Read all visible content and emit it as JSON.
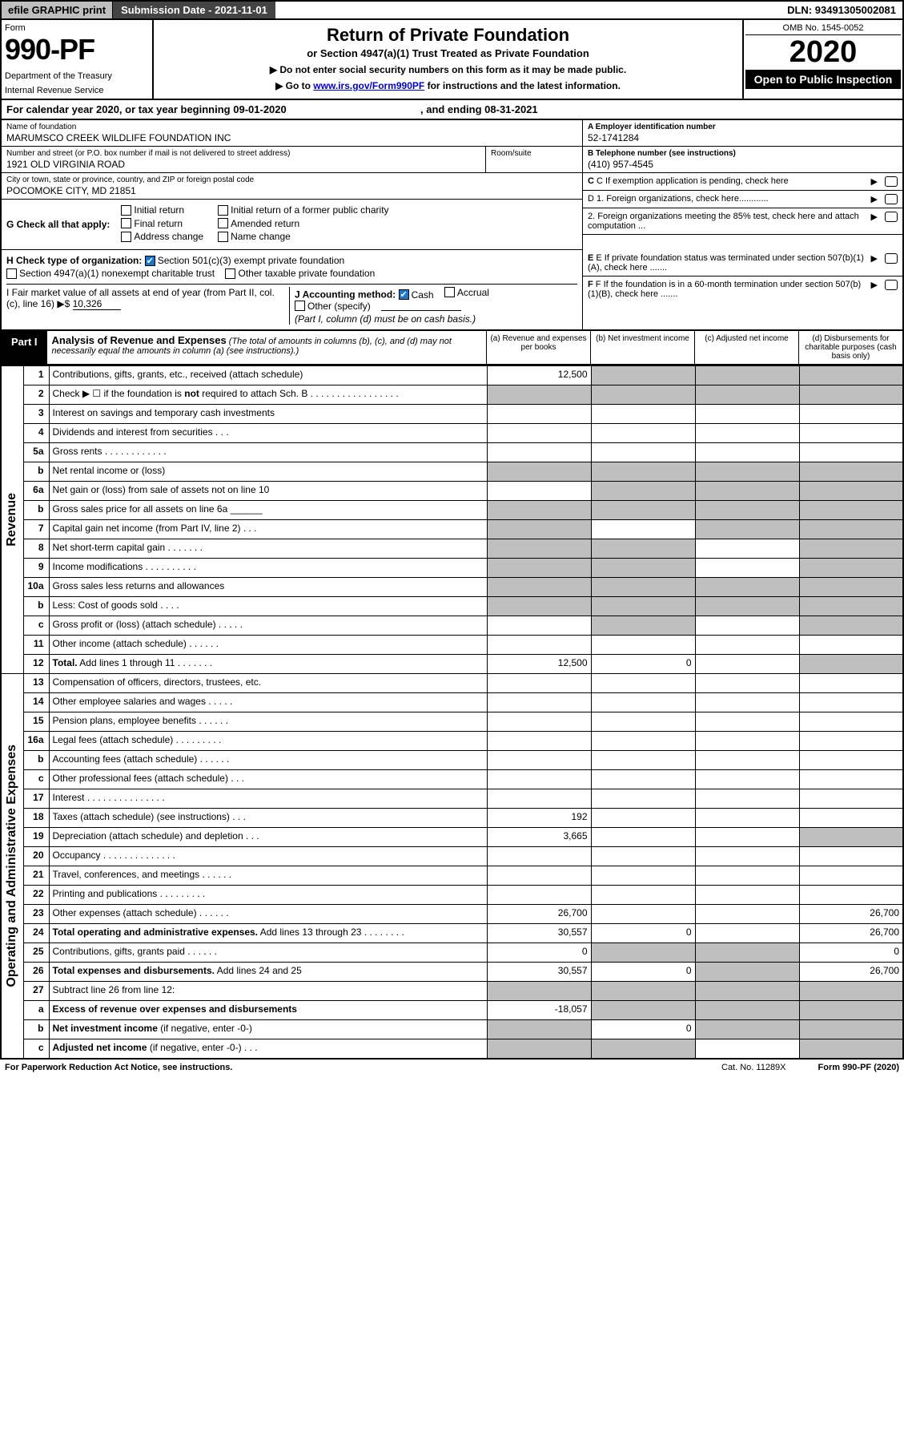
{
  "top": {
    "efile": "efile GRAPHIC print",
    "subdate_lbl": "Submission Date - ",
    "subdate": "2021-11-01",
    "dln_lbl": "DLN: ",
    "dln": "93491305002081"
  },
  "hdr": {
    "form_lbl": "Form",
    "form_num": "990-PF",
    "dept1": "Department of the Treasury",
    "dept2": "Internal Revenue Service",
    "title": "Return of Private Foundation",
    "sub1": "or Section 4947(a)(1) Trust Treated as Private Foundation",
    "sub2a": "▶ Do not enter social security numbers on this form as it may be made public.",
    "sub2b": "▶ Go to ",
    "sub2link": "www.irs.gov/Form990PF",
    "sub2c": " for instructions and the latest information.",
    "omb": "OMB No. 1545-0052",
    "year": "2020",
    "open": "Open to Public Inspection"
  },
  "cal": {
    "text1": "For calendar year 2020, or tax year beginning ",
    "begin": "09-01-2020",
    "text2": " , and ending ",
    "end": "08-31-2021"
  },
  "name": {
    "lbl": "Name of foundation",
    "val": "MARUMSCO CREEK WILDLIFE FOUNDATION INC"
  },
  "ein": {
    "lbl": "A Employer identification number",
    "val": "52-1741284"
  },
  "street": {
    "lbl": "Number and street (or P.O. box number if mail is not delivered to street address)",
    "val": "1921 OLD VIRGINIA ROAD"
  },
  "room": {
    "lbl": "Room/suite",
    "val": ""
  },
  "phone": {
    "lbl": "B Telephone number (see instructions)",
    "val": "(410) 957-4545"
  },
  "city": {
    "lbl": "City or town, state or province, country, and ZIP or foreign postal code",
    "val": "POCOMOKE CITY, MD  21851"
  },
  "c_exempt": "C If exemption application is pending, check here",
  "g": {
    "prefix": "G Check all that apply:",
    "opts": [
      "Initial return",
      "Final return",
      "Address change",
      "Initial return of a former public charity",
      "Amended return",
      "Name change"
    ]
  },
  "d": {
    "d1": "D 1. Foreign organizations, check here............",
    "d2": "2. Foreign organizations meeting the 85% test, check here and attach computation ..."
  },
  "h": {
    "prefix": "H Check type of organization:",
    "opt1": "Section 501(c)(3) exempt private foundation",
    "opt2": "Section 4947(a)(1) nonexempt charitable trust",
    "opt3": "Other taxable private foundation"
  },
  "e_txt": "E If private foundation status was terminated under section 507(b)(1)(A), check here .......",
  "i": {
    "lbl": "I Fair market value of all assets at end of year (from Part II, col. (c), line 16) ▶$ ",
    "val": "10,326"
  },
  "j": {
    "lbl": "J Accounting method:",
    "cash": "Cash",
    "accrual": "Accrual",
    "other": "Other (specify)",
    "note": "(Part I, column (d) must be on cash basis.)"
  },
  "f_txt": "F If the foundation is in a 60-month termination under section 507(b)(1)(B), check here .......",
  "part1": {
    "lbl": "Part I",
    "ttl": "Analysis of Revenue and Expenses",
    "ital": " (The total of amounts in columns (b), (c), and (d) may not necessarily equal the amounts in column (a) (see instructions).)",
    "ca": "(a) Revenue and expenses per books",
    "cb": "(b) Net investment income",
    "cc": "(c) Adjusted net income",
    "cd": "(d) Disbursements for charitable purposes (cash basis only)"
  },
  "side": {
    "rev": "Revenue",
    "exp": "Operating and Administrative Expenses"
  },
  "rows": [
    {
      "n": "1",
      "d": "Contributions, gifts, grants, etc., received (attach schedule)",
      "a": "12,500",
      "grey": [
        "b",
        "c",
        "d"
      ]
    },
    {
      "n": "2",
      "d": "Check ▶ ☐ if the foundation is <b>not</b> required to attach Sch. B  . . . . . . . . . . . . . . . . .",
      "grey": [
        "a",
        "b",
        "c",
        "d"
      ]
    },
    {
      "n": "3",
      "d": "Interest on savings and temporary cash investments"
    },
    {
      "n": "4",
      "d": "Dividends and interest from securities    .  .  ."
    },
    {
      "n": "5a",
      "d": "Gross rents    .  .  .  .  .  .  .  .  .  .  .  ."
    },
    {
      "n": "b",
      "d": "Net rental income or (loss)",
      "grey": [
        "a",
        "b",
        "c",
        "d"
      ]
    },
    {
      "n": "6a",
      "d": "Net gain or (loss) from sale of assets not on line 10",
      "grey": [
        "b",
        "c",
        "d"
      ]
    },
    {
      "n": "b",
      "d": "Gross sales price for all assets on line 6a ______",
      "grey": [
        "a",
        "b",
        "c",
        "d"
      ]
    },
    {
      "n": "7",
      "d": "Capital gain net income (from Part IV, line 2)   .  .  .",
      "grey": [
        "a",
        "c",
        "d"
      ]
    },
    {
      "n": "8",
      "d": "Net short-term capital gain  .  .  .  .  .  .  .",
      "grey": [
        "a",
        "b",
        "d"
      ]
    },
    {
      "n": "9",
      "d": "Income modifications  .  .  .  .  .  .  .  .  .  .",
      "grey": [
        "a",
        "b",
        "d"
      ]
    },
    {
      "n": "10a",
      "d": "Gross sales less returns and allowances",
      "grey": [
        "a",
        "b",
        "c",
        "d"
      ]
    },
    {
      "n": "b",
      "d": "Less: Cost of goods sold   .  .  .  .",
      "grey": [
        "a",
        "b",
        "c",
        "d"
      ]
    },
    {
      "n": "c",
      "d": "Gross profit or (loss) (attach schedule)   .  .  .  .  .",
      "grey": [
        "b",
        "d"
      ]
    },
    {
      "n": "11",
      "d": "Other income (attach schedule)   .  .  .  .  .  ."
    },
    {
      "n": "12",
      "d": "<b>Total.</b> Add lines 1 through 11   .  .  .  .  .  .  .",
      "a": "12,500",
      "b": "0",
      "grey": [
        "d"
      ]
    },
    {
      "n": "13",
      "d": "Compensation of officers, directors, trustees, etc."
    },
    {
      "n": "14",
      "d": "Other employee salaries and wages   .  .  .  .  ."
    },
    {
      "n": "15",
      "d": "Pension plans, employee benefits  .  .  .  .  .  ."
    },
    {
      "n": "16a",
      "d": "Legal fees (attach schedule) .  .  .  .  .  .  .  .  ."
    },
    {
      "n": "b",
      "d": "Accounting fees (attach schedule)  .  .  .  .  .  ."
    },
    {
      "n": "c",
      "d": "Other professional fees (attach schedule)    .  .  ."
    },
    {
      "n": "17",
      "d": "Interest  .  .  .  .  .  .  .  .  .  .  .  .  .  .  ."
    },
    {
      "n": "18",
      "d": "Taxes (attach schedule) (see instructions)    .  .  .",
      "a": "192"
    },
    {
      "n": "19",
      "d": "Depreciation (attach schedule) and depletion   .  .  .",
      "a": "3,665",
      "grey": [
        "d"
      ]
    },
    {
      "n": "20",
      "d": "Occupancy .  .  .  .  .  .  .  .  .  .  .  .  .  ."
    },
    {
      "n": "21",
      "d": "Travel, conferences, and meetings  .  .  .  .  .  ."
    },
    {
      "n": "22",
      "d": "Printing and publications  .  .  .  .  .  .  .  .  ."
    },
    {
      "n": "23",
      "d": "Other expenses (attach schedule)  .  .  .  .  .  .",
      "a": "26,700",
      "dd": "26,700"
    },
    {
      "n": "24",
      "d": "<b>Total operating and administrative expenses.</b> Add lines 13 through 23   .  .  .  .  .  .  .  .",
      "a": "30,557",
      "b": "0",
      "dd": "26,700"
    },
    {
      "n": "25",
      "d": "Contributions, gifts, grants paid    .  .  .  .  .  .",
      "a": "0",
      "grey": [
        "b",
        "c"
      ],
      "dd": "0"
    },
    {
      "n": "26",
      "d": "<b>Total expenses and disbursements.</b> Add lines 24 and 25",
      "a": "30,557",
      "b": "0",
      "grey": [
        "c"
      ],
      "dd": "26,700"
    },
    {
      "n": "27",
      "d": "Subtract line 26 from line 12:",
      "grey": [
        "a",
        "b",
        "c",
        "d"
      ]
    },
    {
      "n": "a",
      "d": "<b>Excess of revenue over expenses and disbursements</b>",
      "a": "-18,057",
      "grey": [
        "b",
        "c",
        "d"
      ]
    },
    {
      "n": "b",
      "d": "<b>Net investment income</b> (if negative, enter -0-)",
      "grey": [
        "a",
        "c",
        "d"
      ],
      "b": "0"
    },
    {
      "n": "c",
      "d": "<b>Adjusted net income</b> (if negative, enter -0-)   .  .  .",
      "grey": [
        "a",
        "b",
        "d"
      ]
    }
  ],
  "footer": {
    "left": "For Paperwork Reduction Act Notice, see instructions.",
    "cat": "Cat. No. 11289X",
    "right": "Form 990-PF (2020)"
  }
}
